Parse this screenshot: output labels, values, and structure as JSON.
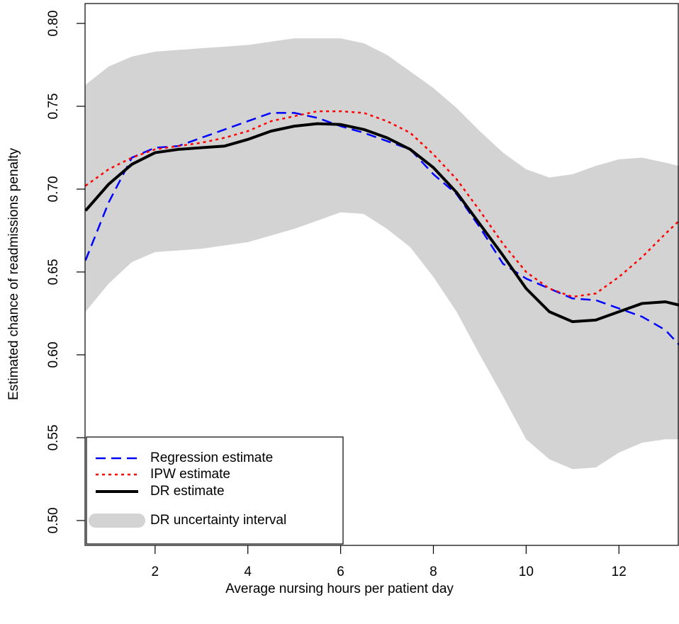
{
  "chart_data": {
    "type": "line",
    "x_label": "Average nursing hours per patient day",
    "y_label": "Estimated chance of readmissions penalty",
    "x": [
      0.5,
      1,
      1.5,
      2,
      2.5,
      3,
      3.5,
      4,
      4.5,
      5,
      5.5,
      6,
      6.5,
      7,
      7.5,
      8,
      8.5,
      9,
      9.5,
      10,
      10.5,
      11,
      11.5,
      12,
      12.5,
      13,
      13.3
    ],
    "band": {
      "name": "DR uncertainty interval",
      "color": "#d3d3d3",
      "upper": [
        0.763,
        0.774,
        0.78,
        0.783,
        0.784,
        0.785,
        0.786,
        0.787,
        0.789,
        0.791,
        0.791,
        0.791,
        0.788,
        0.781,
        0.771,
        0.761,
        0.749,
        0.735,
        0.722,
        0.712,
        0.707,
        0.709,
        0.714,
        0.718,
        0.719,
        0.716,
        0.714
      ],
      "lower": [
        0.626,
        0.643,
        0.656,
        0.662,
        0.663,
        0.664,
        0.666,
        0.668,
        0.672,
        0.676,
        0.681,
        0.686,
        0.685,
        0.676,
        0.665,
        0.647,
        0.626,
        0.6,
        0.575,
        0.549,
        0.537,
        0.531,
        0.532,
        0.541,
        0.547,
        0.549,
        0.549
      ]
    },
    "series": [
      {
        "name": "Regression estimate",
        "color": "#0000ff",
        "style": "dashed",
        "values": [
          0.657,
          0.692,
          0.719,
          0.725,
          0.726,
          0.731,
          0.736,
          0.741,
          0.746,
          0.746,
          0.743,
          0.738,
          0.734,
          0.729,
          0.724,
          0.709,
          0.697,
          0.677,
          0.655,
          0.646,
          0.64,
          0.634,
          0.633,
          0.628,
          0.623,
          0.615,
          0.606
        ]
      },
      {
        "name": "IPW estimate",
        "color": "#ff0000",
        "style": "dotted",
        "values": [
          0.702,
          0.712,
          0.719,
          0.724,
          0.726,
          0.728,
          0.731,
          0.735,
          0.741,
          0.744,
          0.747,
          0.747,
          0.746,
          0.741,
          0.734,
          0.721,
          0.706,
          0.687,
          0.667,
          0.65,
          0.64,
          0.635,
          0.637,
          0.647,
          0.659,
          0.673,
          0.681
        ]
      },
      {
        "name": "DR estimate",
        "color": "#000000",
        "style": "solid",
        "values": [
          0.687,
          0.703,
          0.715,
          0.722,
          0.724,
          0.725,
          0.726,
          0.73,
          0.735,
          0.738,
          0.7395,
          0.739,
          0.736,
          0.731,
          0.724,
          0.713,
          0.698,
          0.679,
          0.66,
          0.64,
          0.626,
          0.62,
          0.621,
          0.626,
          0.631,
          0.632,
          0.63
        ]
      }
    ],
    "xlim": [
      0.49,
      13.28
    ],
    "ylim": [
      0.485,
      0.812
    ],
    "xticks": [
      2,
      4,
      6,
      8,
      10,
      12
    ],
    "yticks": [
      {
        "value": 0.5,
        "label": "0.50"
      },
      0.55,
      {
        "value": 0.6,
        "label": "0.60"
      },
      0.65,
      {
        "value": 0.7,
        "label": "0.70"
      },
      0.75,
      {
        "value": 0.8,
        "label": "0.80"
      }
    ],
    "legend": "bottomleft"
  }
}
